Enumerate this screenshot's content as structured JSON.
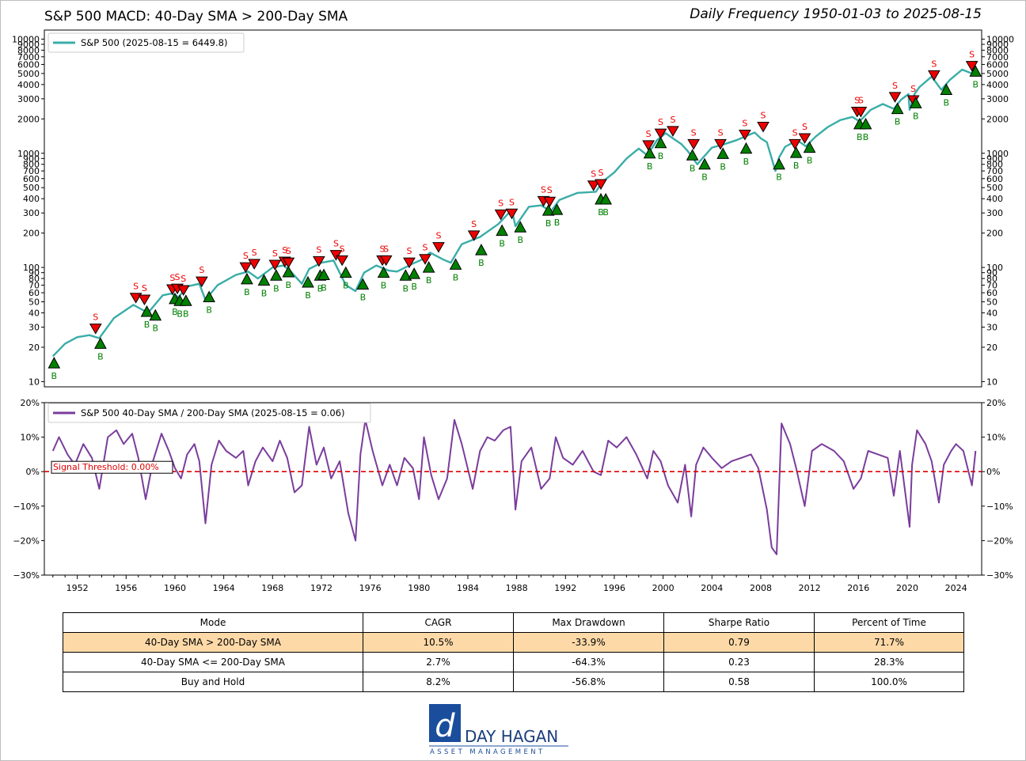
{
  "header": {
    "title": "S&P 500 MACD: 40-Day SMA > 200-Day SMA",
    "subtitle": "Daily Frequency 1950-01-03 to 2025-08-15"
  },
  "colors": {
    "price_line": "#3aada8",
    "ratio_line": "#7a3d9c",
    "threshold": "#e00000",
    "sell_marker": "#ee0000",
    "buy_marker": "#008000",
    "highlight_row": "#fdd9a8"
  },
  "chart_data": [
    {
      "type": "line",
      "scale": "log",
      "legend": "S&P 500 (2025-08-15 = 6449.8)",
      "legend_position": "top-left",
      "ylim": [
        9,
        12000
      ],
      "xlim": [
        1949.3,
        2026.1
      ],
      "yticks": [
        10,
        20,
        30,
        40,
        50,
        60,
        70,
        80,
        90,
        100,
        200,
        300,
        400,
        500,
        600,
        700,
        800,
        900,
        1000,
        2000,
        3000,
        4000,
        5000,
        6000,
        7000,
        8000,
        9000,
        10000
      ],
      "ytick_labels": [
        "10",
        "20",
        "30",
        "40",
        "50",
        "60",
        "70",
        "80",
        "90",
        "100",
        "200",
        "300",
        "400",
        "500",
        "600",
        "700",
        "800",
        "900",
        "1000",
        "2000",
        "3000",
        "4000",
        "5000",
        "6000",
        "7000",
        "8000",
        "9000",
        "10000"
      ],
      "series": [
        {
          "x": [
            1950.0,
            1951.0,
            1952.0,
            1953.0,
            1953.8,
            1955.0,
            1956.6,
            1957.8,
            1959.0,
            1959.7,
            1960.3,
            1961.0,
            1962.0,
            1962.5,
            1963.5,
            1965.0,
            1966.0,
            1966.8,
            1968.0,
            1968.9,
            1969.5,
            1970.4,
            1971.0,
            1972.0,
            1973.0,
            1974.0,
            1974.8,
            1975.5,
            1976.5,
            1977.5,
            1978.2,
            1979.5,
            1980.3,
            1980.9,
            1982.0,
            1982.6,
            1983.5,
            1985.0,
            1986.5,
            1987.6,
            1987.9,
            1989.0,
            1990.0,
            1990.8,
            1991.5,
            1993.0,
            1994.5,
            1995.0,
            1996.0,
            1997.0,
            1998.0,
            1998.7,
            1999.5,
            2000.2,
            2000.8,
            2001.5,
            2002.0,
            2002.8,
            2003.2,
            2004.0,
            2005.0,
            2006.0,
            2007.5,
            2008.0,
            2008.5,
            2009.2,
            2009.5,
            2010.0,
            2011.0,
            2011.7,
            2012.5,
            2013.5,
            2014.5,
            2015.5,
            2016.1,
            2017.0,
            2018.0,
            2018.9,
            2019.5,
            2020.1,
            2020.2,
            2020.6,
            2021.0,
            2022.0,
            2022.8,
            2023.5,
            2024.5,
            2025.3,
            2025.6
          ],
          "y": [
            16.7,
            21.5,
            24.5,
            25.5,
            24.0,
            36.0,
            47.0,
            40.0,
            57.0,
            59.0,
            55.0,
            68.0,
            72.0,
            52.0,
            70.0,
            86.0,
            92.0,
            80.0,
            100.0,
            104.0,
            92.0,
            72.0,
            97.0,
            110.0,
            115.0,
            70.0,
            62.0,
            90.0,
            104.0,
            94.0,
            92.0,
            108.0,
            118.0,
            135.0,
            117.0,
            110.0,
            160.0,
            185.0,
            240.0,
            320.0,
            230.0,
            340.0,
            350.0,
            310.0,
            390.0,
            450.0,
            460.0,
            560.0,
            680.0,
            900.0,
            1100.0,
            960.0,
            1300.0,
            1500.0,
            1350.0,
            1200.0,
            1050.0,
            800.0,
            900.0,
            1120.0,
            1200.0,
            1300.0,
            1520.0,
            1350.0,
            1250.0,
            700.0,
            920.0,
            1140.0,
            1300.0,
            1150.0,
            1400.0,
            1700.0,
            1950.0,
            2080.0,
            1900.0,
            2400.0,
            2700.0,
            2450.0,
            2950.0,
            3300.0,
            2400.0,
            3300.0,
            3800.0,
            4700.0,
            3600.0,
            4400.0,
            5400.0,
            5000.0,
            6449.8
          ]
        }
      ],
      "sell_signals": [
        {
          "x": 1953.5,
          "y": 29.0
        },
        {
          "x": 1956.8,
          "y": 54.0
        },
        {
          "x": 1957.5,
          "y": 52.0
        },
        {
          "x": 1959.8,
          "y": 64.0
        },
        {
          "x": 1960.2,
          "y": 65.0
        },
        {
          "x": 1960.7,
          "y": 63.0
        },
        {
          "x": 1962.2,
          "y": 75.0
        },
        {
          "x": 1965.8,
          "y": 100.0
        },
        {
          "x": 1966.5,
          "y": 107.0
        },
        {
          "x": 1968.2,
          "y": 105.0
        },
        {
          "x": 1969.0,
          "y": 112.0
        },
        {
          "x": 1969.3,
          "y": 110.0
        },
        {
          "x": 1971.8,
          "y": 113.0
        },
        {
          "x": 1973.2,
          "y": 128.0
        },
        {
          "x": 1973.7,
          "y": 115.0
        },
        {
          "x": 1977.0,
          "y": 115.0
        },
        {
          "x": 1977.3,
          "y": 115.0
        },
        {
          "x": 1979.2,
          "y": 110.0
        },
        {
          "x": 1980.5,
          "y": 118.0
        },
        {
          "x": 1981.6,
          "y": 150.0
        },
        {
          "x": 1984.5,
          "y": 190.0
        },
        {
          "x": 1986.7,
          "y": 290.0
        },
        {
          "x": 1987.6,
          "y": 295.0
        },
        {
          "x": 1990.2,
          "y": 380.0
        },
        {
          "x": 1990.7,
          "y": 375.0
        },
        {
          "x": 1994.3,
          "y": 520.0
        },
        {
          "x": 1994.9,
          "y": 535.0
        },
        {
          "x": 1998.8,
          "y": 1170.0
        },
        {
          "x": 1999.8,
          "y": 1480.0
        },
        {
          "x": 2000.8,
          "y": 1560.0
        },
        {
          "x": 2002.5,
          "y": 1200.0
        },
        {
          "x": 2004.7,
          "y": 1200.0
        },
        {
          "x": 2006.7,
          "y": 1450.0
        },
        {
          "x": 2008.2,
          "y": 1700.0
        },
        {
          "x": 2010.8,
          "y": 1200.0
        },
        {
          "x": 2011.6,
          "y": 1350.0
        },
        {
          "x": 2015.9,
          "y": 2300.0
        },
        {
          "x": 2016.2,
          "y": 2300.0
        },
        {
          "x": 2019.0,
          "y": 3100.0
        },
        {
          "x": 2020.5,
          "y": 2900.0
        },
        {
          "x": 2022.2,
          "y": 4800.0
        },
        {
          "x": 2025.3,
          "y": 5800.0
        }
      ],
      "buy_signals": [
        {
          "x": 1950.1,
          "y": 14.5
        },
        {
          "x": 1953.9,
          "y": 21.5
        },
        {
          "x": 1957.7,
          "y": 41.0
        },
        {
          "x": 1958.4,
          "y": 38.0
        },
        {
          "x": 1960.0,
          "y": 53.0
        },
        {
          "x": 1960.4,
          "y": 51.0
        },
        {
          "x": 1960.9,
          "y": 51.0
        },
        {
          "x": 1962.8,
          "y": 55.0
        },
        {
          "x": 1965.9,
          "y": 79.0
        },
        {
          "x": 1967.3,
          "y": 77.0
        },
        {
          "x": 1968.3,
          "y": 85.0
        },
        {
          "x": 1969.3,
          "y": 91.0
        },
        {
          "x": 1970.9,
          "y": 74.0
        },
        {
          "x": 1971.9,
          "y": 85.0
        },
        {
          "x": 1972.2,
          "y": 86.0
        },
        {
          "x": 1974.0,
          "y": 90.0
        },
        {
          "x": 1975.4,
          "y": 71.0
        },
        {
          "x": 1977.1,
          "y": 90.0
        },
        {
          "x": 1978.9,
          "y": 85.0
        },
        {
          "x": 1979.6,
          "y": 88.0
        },
        {
          "x": 1980.8,
          "y": 100.0
        },
        {
          "x": 1983.0,
          "y": 106.0
        },
        {
          "x": 1985.1,
          "y": 142.0
        },
        {
          "x": 1986.8,
          "y": 210.0
        },
        {
          "x": 1988.3,
          "y": 225.0
        },
        {
          "x": 1990.6,
          "y": 315.0
        },
        {
          "x": 1991.3,
          "y": 320.0
        },
        {
          "x": 1994.9,
          "y": 395.0
        },
        {
          "x": 1995.3,
          "y": 395.0
        },
        {
          "x": 1998.9,
          "y": 1000.0
        },
        {
          "x": 1999.8,
          "y": 1230.0
        },
        {
          "x": 2002.4,
          "y": 960.0
        },
        {
          "x": 2003.4,
          "y": 800.0
        },
        {
          "x": 2004.9,
          "y": 990.0
        },
        {
          "x": 2006.8,
          "y": 1100.0
        },
        {
          "x": 2009.5,
          "y": 800.0
        },
        {
          "x": 2010.9,
          "y": 1010.0
        },
        {
          "x": 2012.0,
          "y": 1120.0
        },
        {
          "x": 2016.1,
          "y": 1800.0
        },
        {
          "x": 2016.6,
          "y": 1800.0
        },
        {
          "x": 2019.2,
          "y": 2450.0
        },
        {
          "x": 2020.7,
          "y": 2750.0
        },
        {
          "x": 2023.2,
          "y": 3600.0
        },
        {
          "x": 2025.6,
          "y": 5200.0
        }
      ],
      "sell_label": "S",
      "buy_label": "B"
    },
    {
      "type": "line",
      "legend": "S&P 500 40-Day SMA / 200-Day SMA (2025-08-15 = 0.06)",
      "legend_position": "top-left",
      "ylim": [
        -0.3,
        0.2
      ],
      "xlim": [
        1949.3,
        2026.1
      ],
      "yticks": [
        -0.3,
        -0.2,
        -0.1,
        0.0,
        0.1,
        0.2
      ],
      "ytick_labels": [
        "−30%",
        "−20%",
        "−10%",
        "0%",
        "10%",
        "20%"
      ],
      "xticks": [
        1952,
        1956,
        1960,
        1964,
        1968,
        1972,
        1976,
        1980,
        1984,
        1988,
        1992,
        1996,
        2000,
        2004,
        2008,
        2012,
        2016,
        2020,
        2024
      ],
      "xtick_labels": [
        "1952",
        "1956",
        "1960",
        "1964",
        "1968",
        "1972",
        "1976",
        "1980",
        "1984",
        "1988",
        "1992",
        "1996",
        "2000",
        "2004",
        "2008",
        "2012",
        "2016",
        "2020",
        "2024"
      ],
      "threshold": 0.0,
      "threshold_label": "Signal Threshold: 0.00%",
      "series": [
        {
          "x": [
            1950.0,
            1950.5,
            1951.2,
            1951.8,
            1952.5,
            1953.2,
            1953.8,
            1954.5,
            1955.2,
            1955.8,
            1956.5,
            1957.0,
            1957.6,
            1958.2,
            1958.9,
            1959.5,
            1960.0,
            1960.5,
            1961.0,
            1961.6,
            1962.0,
            1962.5,
            1963.0,
            1963.6,
            1964.2,
            1965.0,
            1965.6,
            1966.0,
            1966.6,
            1967.2,
            1968.0,
            1968.6,
            1969.2,
            1969.8,
            1970.4,
            1971.0,
            1971.6,
            1972.2,
            1972.8,
            1973.5,
            1974.2,
            1974.8,
            1975.2,
            1975.6,
            1976.2,
            1977.0,
            1977.6,
            1978.2,
            1978.8,
            1979.5,
            1980.0,
            1980.4,
            1981.0,
            1981.6,
            1982.3,
            1982.9,
            1983.5,
            1984.4,
            1985.0,
            1985.6,
            1986.2,
            1986.9,
            1987.5,
            1987.9,
            1988.4,
            1989.2,
            1990.0,
            1990.7,
            1991.2,
            1991.8,
            1992.6,
            1993.4,
            1994.3,
            1994.9,
            1995.5,
            1996.2,
            1997.0,
            1997.8,
            1998.7,
            1999.2,
            1999.8,
            2000.4,
            2001.2,
            2001.8,
            2002.3,
            2002.7,
            2003.3,
            2004.0,
            2004.8,
            2005.6,
            2006.4,
            2007.2,
            2007.8,
            2008.5,
            2008.9,
            2009.3,
            2009.7,
            2010.4,
            2010.9,
            2011.6,
            2012.2,
            2013.0,
            2014.0,
            2014.8,
            2015.6,
            2016.2,
            2016.8,
            2017.6,
            2018.4,
            2018.9,
            2019.4,
            2020.2,
            2020.4,
            2020.8,
            2021.5,
            2022.0,
            2022.6,
            2023.0,
            2023.6,
            2024.0,
            2024.6,
            2025.3,
            2025.6
          ],
          "y": [
            0.06,
            0.1,
            0.05,
            0.02,
            0.08,
            0.04,
            -0.05,
            0.1,
            0.12,
            0.08,
            0.11,
            0.04,
            -0.08,
            0.03,
            0.11,
            0.06,
            0.01,
            -0.02,
            0.05,
            0.08,
            0.03,
            -0.15,
            0.02,
            0.09,
            0.06,
            0.04,
            0.06,
            -0.04,
            0.03,
            0.07,
            0.03,
            0.09,
            0.04,
            -0.06,
            -0.04,
            0.13,
            0.02,
            0.07,
            -0.02,
            0.03,
            -0.12,
            -0.2,
            0.05,
            0.15,
            0.06,
            -0.04,
            0.02,
            -0.04,
            0.04,
            0.01,
            -0.08,
            0.1,
            -0.01,
            -0.08,
            -0.02,
            0.15,
            0.08,
            -0.05,
            0.06,
            0.1,
            0.09,
            0.12,
            0.13,
            -0.11,
            0.03,
            0.07,
            -0.05,
            -0.02,
            0.1,
            0.04,
            0.02,
            0.06,
            0.0,
            -0.01,
            0.09,
            0.07,
            0.1,
            0.05,
            -0.02,
            0.06,
            0.03,
            -0.04,
            -0.09,
            0.02,
            -0.13,
            0.02,
            0.07,
            0.04,
            0.01,
            0.03,
            0.04,
            0.05,
            0.01,
            -0.11,
            -0.22,
            -0.24,
            0.14,
            0.08,
            0.01,
            -0.1,
            0.06,
            0.08,
            0.06,
            0.03,
            -0.05,
            -0.02,
            0.06,
            0.05,
            0.04,
            -0.07,
            0.06,
            -0.16,
            0.02,
            0.12,
            0.08,
            0.03,
            -0.09,
            0.02,
            0.06,
            0.08,
            0.06,
            -0.04,
            0.06
          ]
        }
      ]
    }
  ],
  "table": {
    "headers": [
      "Mode",
      "CAGR",
      "Max Drawdown",
      "Sharpe Ratio",
      "Percent of Time"
    ],
    "rows": [
      [
        "40-Day SMA > 200-Day SMA",
        "10.5%",
        "-33.9%",
        "0.79",
        "71.7%"
      ],
      [
        "40-Day SMA <= 200-Day SMA",
        "2.7%",
        "-64.3%",
        "0.23",
        "28.3%"
      ],
      [
        "Buy and Hold",
        "8.2%",
        "-56.8%",
        "0.58",
        "100.0%"
      ]
    ]
  },
  "logo": {
    "name": "DAY HAGAN",
    "tagline": "ASSET MANAGEMENT",
    "mark": "d",
    "brand_color": "#1a4d9c"
  }
}
